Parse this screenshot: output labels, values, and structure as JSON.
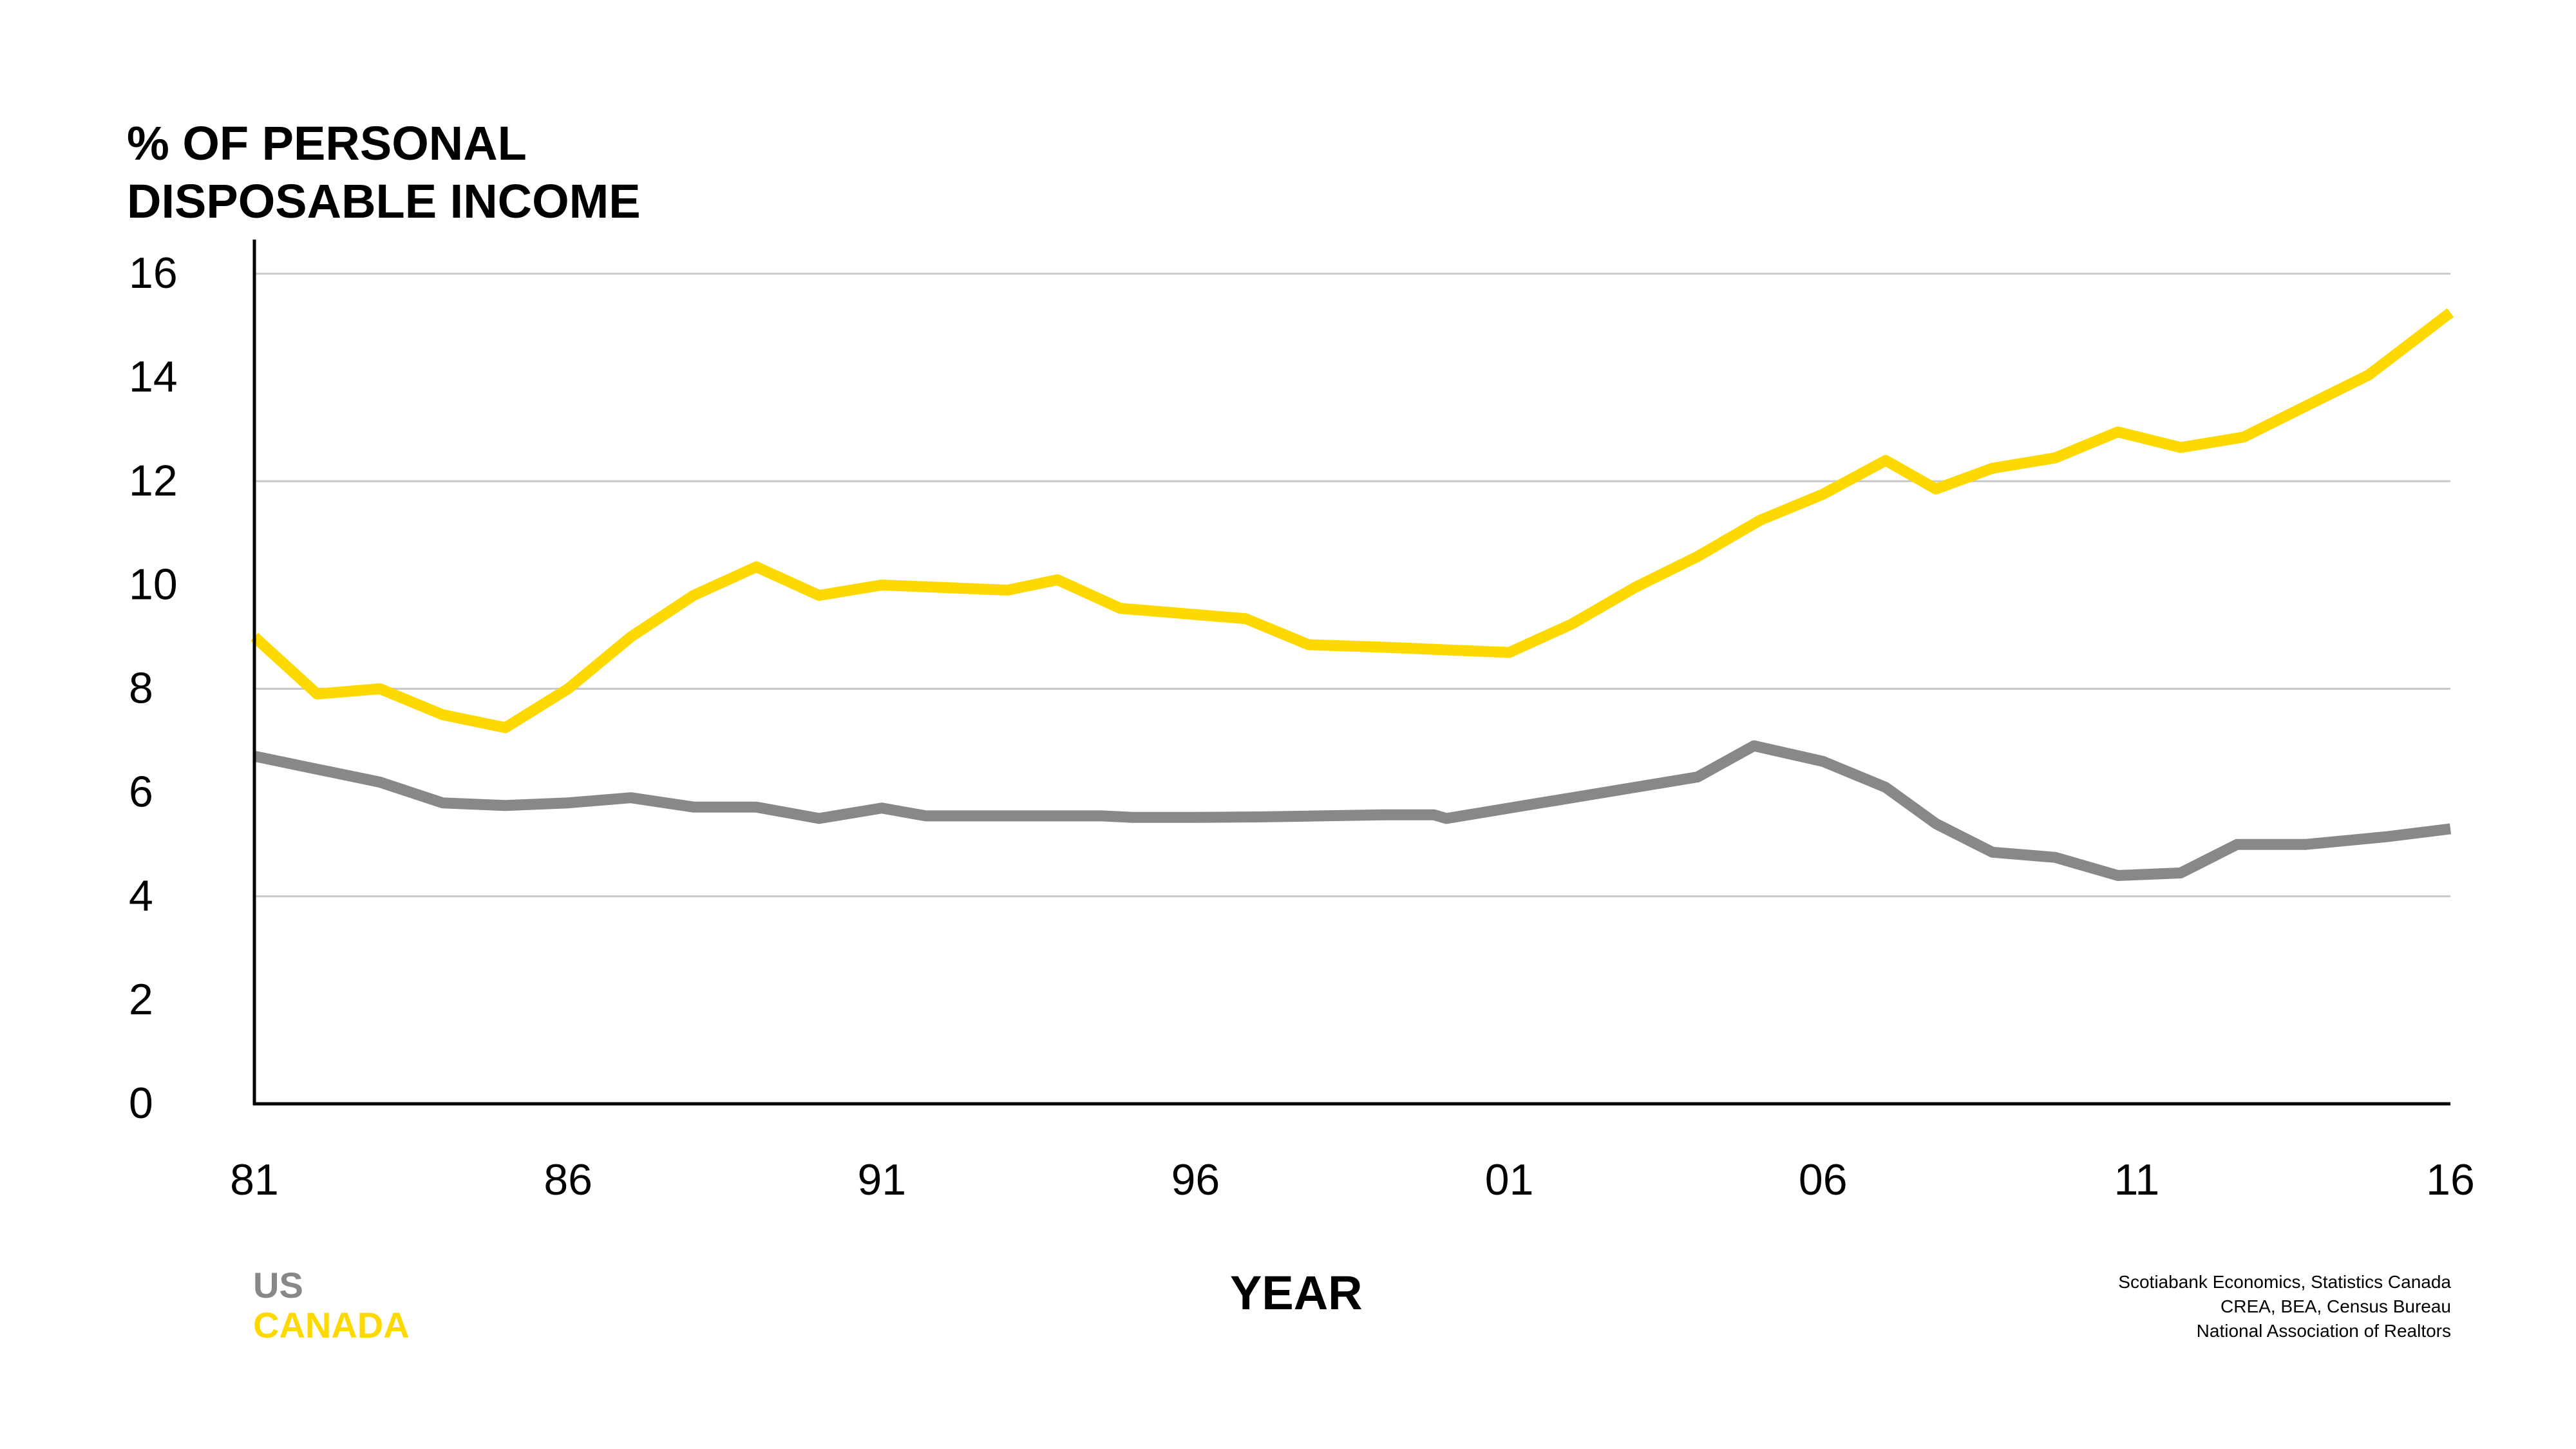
{
  "chart_data": {
    "type": "line",
    "ylabel_lines": [
      "% OF PERSONAL",
      "DISPOSABLE INCOME"
    ],
    "xlabel": "YEAR",
    "ylim": [
      0,
      16
    ],
    "yticks": [
      0,
      2,
      4,
      6,
      8,
      10,
      12,
      14,
      16
    ],
    "gridlines_at": [
      4,
      8,
      12,
      16
    ],
    "xlim": [
      1981,
      2016
    ],
    "xticks": [
      {
        "x": 1981,
        "label": "81"
      },
      {
        "x": 1986,
        "label": "86"
      },
      {
        "x": 1991,
        "label": "91"
      },
      {
        "x": 1996,
        "label": "96"
      },
      {
        "x": 2001,
        "label": "01"
      },
      {
        "x": 2006,
        "label": "06"
      },
      {
        "x": 2011,
        "label": "11"
      },
      {
        "x": 2016,
        "label": "16"
      }
    ],
    "legend_placement": "bottom-left",
    "series": [
      {
        "name": "US",
        "color": "#888888",
        "x": [
          1981,
          1982,
          1983,
          1984,
          1985,
          1986,
          1987,
          1988,
          1989,
          1990,
          1991,
          1991.7,
          1993,
          1994.5,
          1995,
          1996,
          1997,
          1998,
          1999,
          1999.8,
          2000,
          2001,
          2002,
          2003,
          2004,
          2004.9,
          2006,
          2007,
          2007.8,
          2008.7,
          2009.7,
          2010.7,
          2011.7,
          2012.6,
          2013.7,
          2015,
          2016
        ],
        "values": [
          6.7,
          6.45,
          6.2,
          5.8,
          5.75,
          5.8,
          5.9,
          5.72,
          5.72,
          5.5,
          5.7,
          5.55,
          5.55,
          5.55,
          5.52,
          5.52,
          5.53,
          5.55,
          5.57,
          5.57,
          5.5,
          5.7,
          5.9,
          6.1,
          6.3,
          6.9,
          6.6,
          6.1,
          5.4,
          4.85,
          4.75,
          4.4,
          4.45,
          5.0,
          5.0,
          5.15,
          5.3
        ]
      },
      {
        "name": "CANADA",
        "color": "#FDD900",
        "x": [
          1981,
          1982,
          1983,
          1984,
          1985,
          1986,
          1987,
          1988,
          1989,
          1990,
          1991,
          1992,
          1993,
          1993.8,
          1994.8,
          1996.8,
          1997.8,
          1999,
          2000,
          2001,
          2002,
          2003,
          2004,
          2005,
          2006,
          2007,
          2007.8,
          2008.7,
          2009.7,
          2010.7,
          2011.7,
          2012.7,
          2013.7,
          2014.7,
          2016
        ],
        "values": [
          9.0,
          7.9,
          8.0,
          7.5,
          7.25,
          8.0,
          9.0,
          9.8,
          10.35,
          9.8,
          10.0,
          9.95,
          9.9,
          10.1,
          9.55,
          9.35,
          8.85,
          8.8,
          8.75,
          8.7,
          9.25,
          9.95,
          10.55,
          11.25,
          11.75,
          12.4,
          11.85,
          12.25,
          12.45,
          12.95,
          12.65,
          12.85,
          13.45,
          14.05,
          15.25
        ]
      }
    ]
  },
  "legend": {
    "us_label": "US",
    "canada_label": "CANADA"
  },
  "source": {
    "line1": "Scotiabank Economics, Statistics Canada",
    "line2": "CREA, BEA, Census Bureau",
    "line3": "National Association of Realtors"
  }
}
